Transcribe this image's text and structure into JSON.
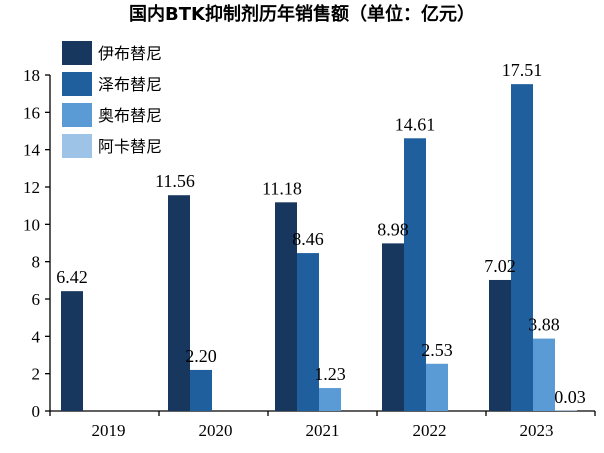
{
  "chart_data": {
    "type": "bar",
    "title": "国内BTK抑制剂历年销售额（单位：亿元）",
    "categories": [
      "2019",
      "2020",
      "2021",
      "2022",
      "2023"
    ],
    "series": [
      {
        "name": "伊布替尼",
        "color": "#17375e",
        "values": [
          6.42,
          11.56,
          11.18,
          8.98,
          7.02
        ]
      },
      {
        "name": "泽布替尼",
        "color": "#1f5f9e",
        "values": [
          null,
          2.2,
          8.46,
          14.61,
          17.51
        ]
      },
      {
        "name": "奥布替尼",
        "color": "#5b9bd5",
        "values": [
          null,
          null,
          1.23,
          2.53,
          3.88
        ]
      },
      {
        "name": "阿卡替尼",
        "color": "#9dc3e6",
        "values": [
          null,
          null,
          null,
          null,
          0.03
        ]
      }
    ],
    "value_labels": [
      [
        "6.42",
        "11.56",
        "11.18",
        "8.98",
        "7.02"
      ],
      [
        null,
        "2.20",
        "8.46",
        "14.61",
        "17.51"
      ],
      [
        null,
        null,
        "1.23",
        "2.53",
        "3.88"
      ],
      [
        null,
        null,
        null,
        null,
        "0.03"
      ]
    ],
    "yticks": [
      "0",
      "2",
      "4",
      "6",
      "8",
      "10",
      "12",
      "14",
      "16",
      "18"
    ],
    "ylim": [
      0,
      18
    ],
    "xlabel": "",
    "ylabel": "",
    "grid": false,
    "legend_position": "top-left"
  }
}
